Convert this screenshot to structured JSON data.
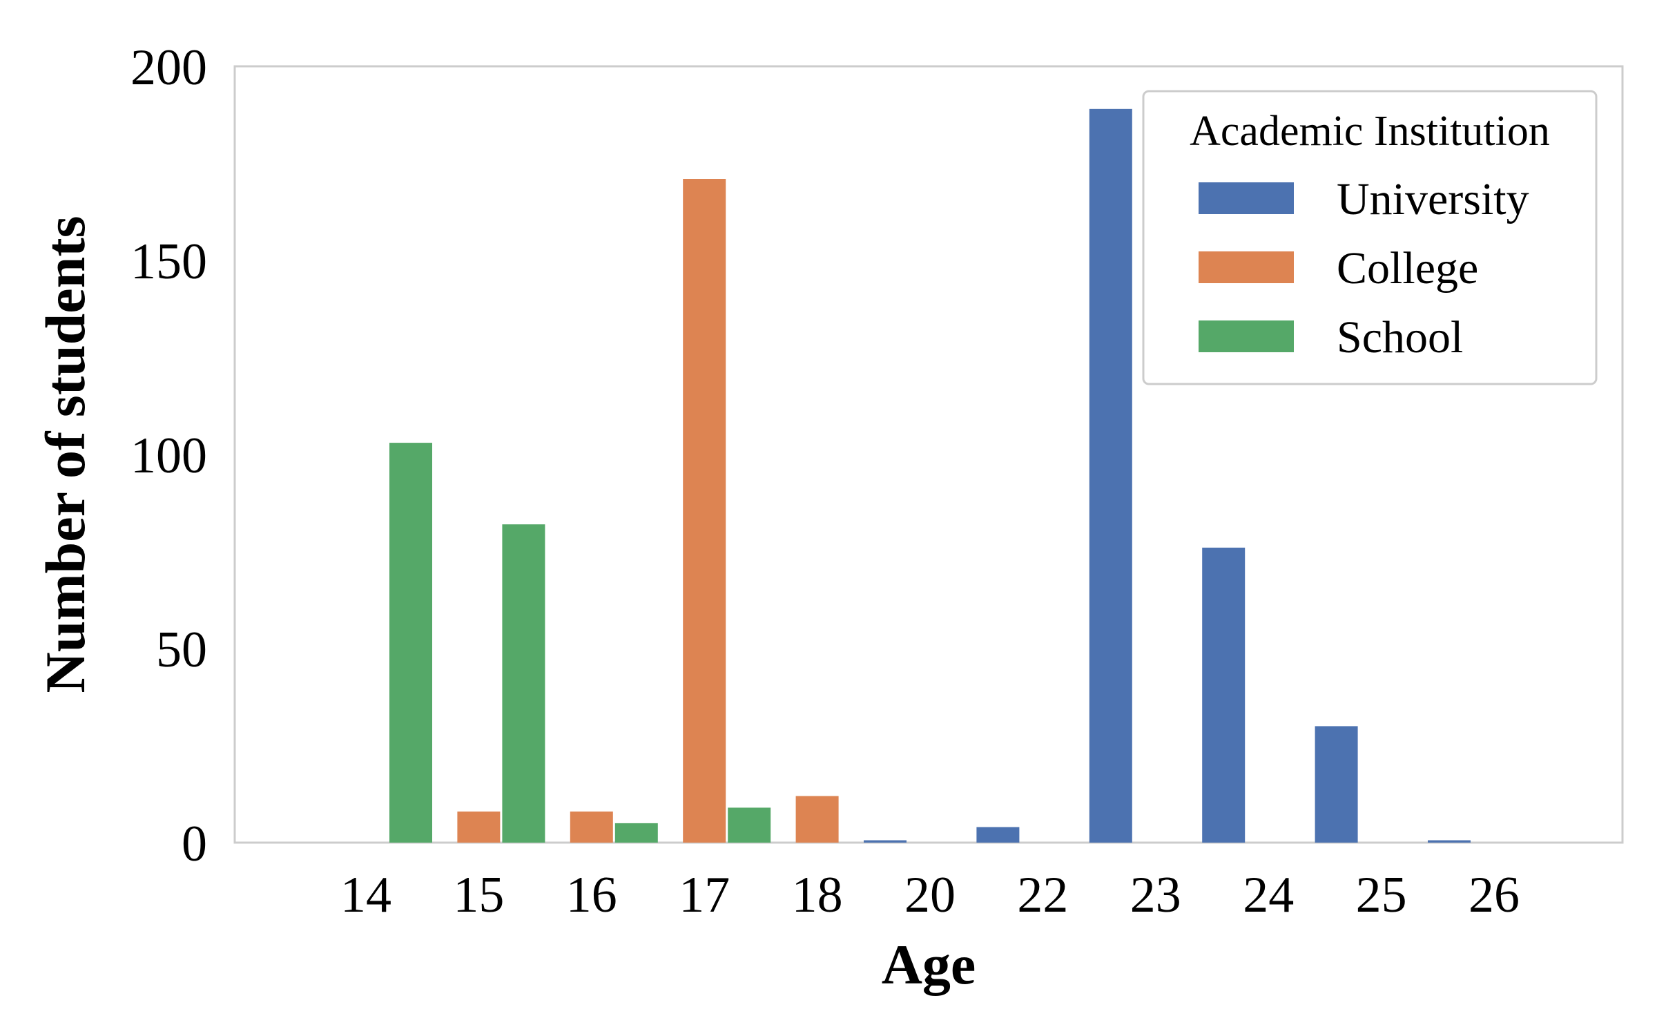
{
  "chart_data": {
    "type": "bar",
    "title": "",
    "xlabel": "Age",
    "ylabel": "Number of students",
    "categories": [
      "14",
      "15",
      "16",
      "17",
      "18",
      "20",
      "22",
      "23",
      "24",
      "25",
      "26"
    ],
    "series": [
      {
        "name": "University",
        "color": "#4c72b0",
        "values": [
          0,
          0,
          0,
          0,
          0,
          0.6,
          4,
          189,
          76,
          30,
          0.6
        ]
      },
      {
        "name": "College",
        "color": "#dd8452",
        "values": [
          0,
          8,
          8,
          171,
          12,
          0,
          0,
          0,
          0,
          0,
          0
        ]
      },
      {
        "name": "School",
        "color": "#55a868",
        "values": [
          103,
          82,
          5,
          9,
          0,
          0,
          0,
          0,
          0,
          0,
          0
        ]
      }
    ],
    "ylim": [
      0,
      200
    ],
    "yticks": [
      0,
      50,
      100,
      150,
      200
    ],
    "grid": false,
    "legend": {
      "title": "Academic Institution",
      "placement": "top-right"
    }
  }
}
